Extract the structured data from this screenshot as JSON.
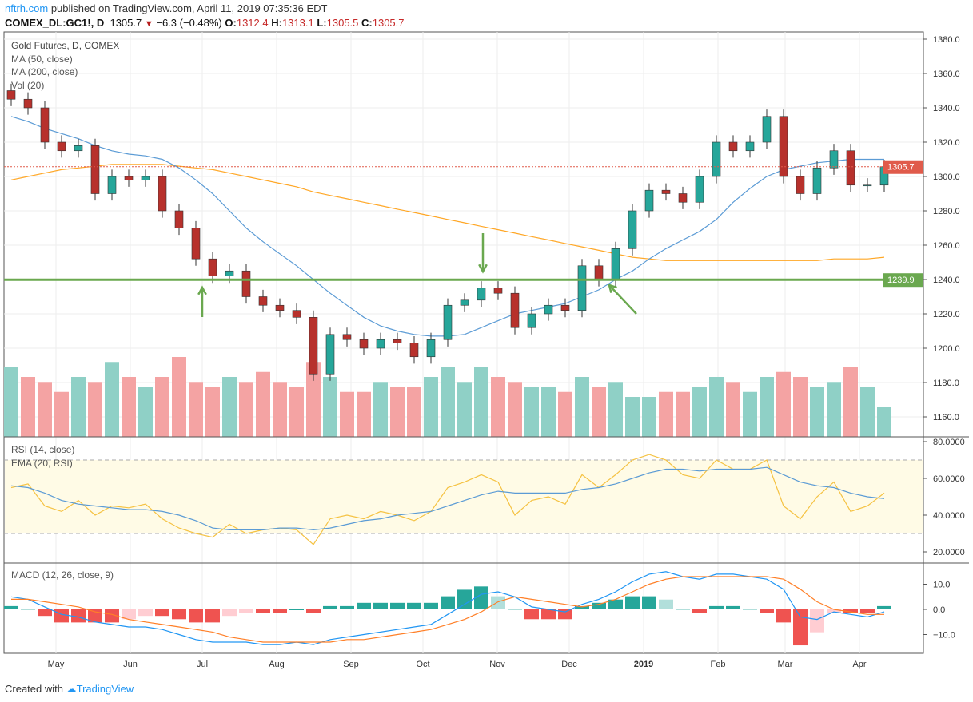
{
  "header": {
    "site": "nftrh.com",
    "published": "published on TradingView.com, April 11, 2019 07:35:36 EDT",
    "symbol": "COMEX_DL:GC1!, D",
    "last": "1305.7",
    "down_arrow": "▼",
    "change": "−6.3 (−0.48%)",
    "o_label": "O:",
    "o": "1312.4",
    "h_label": "H:",
    "h": "1313.1",
    "l_label": "L:",
    "l": "1305.5",
    "c_label": "C:",
    "c": "1305.7"
  },
  "legend": {
    "title": "Gold Futures, D, COMEX",
    "ma50": "MA (50, close)",
    "ma200": "MA (200, close)",
    "vol": "Vol (20)",
    "rsi": "RSI (14, close)",
    "rsi_ema": "EMA (20, RSI)",
    "macd": "MACD (12, 26, close, 9)"
  },
  "footer": {
    "created": "Created with",
    "brand": "TradingView"
  },
  "colors": {
    "up": "#26a69a",
    "down": "#b7312c",
    "ma50": "#5b9bd5",
    "ma200": "#ffa726",
    "support": "#6aa84f",
    "rsi": "#f5c242",
    "rsi_ema": "#5b9bd5",
    "macd": "#2196f3",
    "signal": "#ff7f27",
    "last_price": "#e05b4b"
  },
  "chart_data": [
    {
      "type": "candlestick",
      "title": "Gold Futures, D, COMEX",
      "ylim": [
        1150,
        1385
      ],
      "y_ticks": [
        "1160.0",
        "1180.0",
        "1200.0",
        "1220.0",
        "1240.0",
        "1260.0",
        "1280.0",
        "1300.0",
        "1320.0",
        "1340.0",
        "1360.0",
        "1380.0"
      ],
      "x_ticks": [
        "May",
        "Jun",
        "Jul",
        "Aug",
        "Sep",
        "Oct",
        "Nov",
        "Dec",
        "2019",
        "Feb",
        "Mar",
        "Apr"
      ],
      "x_tick_dates": [
        "2018-05-01",
        "2018-06-01",
        "2018-07-01",
        "2018-08-01",
        "2018-09-01",
        "2018-10-01",
        "2018-11-01",
        "2018-12-01",
        "2019-01-01",
        "2019-02-01",
        "2019-03-01",
        "2019-04-01"
      ],
      "dates": [
        "2018-04-09",
        "2018-04-16",
        "2018-04-23",
        "2018-04-30",
        "2018-05-07",
        "2018-05-14",
        "2018-05-21",
        "2018-05-28",
        "2018-06-04",
        "2018-06-11",
        "2018-06-18",
        "2018-06-25",
        "2018-07-02",
        "2018-07-09",
        "2018-07-16",
        "2018-07-23",
        "2018-07-30",
        "2018-08-06",
        "2018-08-13",
        "2018-08-20",
        "2018-08-27",
        "2018-09-03",
        "2018-09-10",
        "2018-09-17",
        "2018-09-24",
        "2018-10-01",
        "2018-10-08",
        "2018-10-15",
        "2018-10-22",
        "2018-10-29",
        "2018-11-05",
        "2018-11-12",
        "2018-11-19",
        "2018-11-26",
        "2018-12-03",
        "2018-12-10",
        "2018-12-17",
        "2018-12-24",
        "2018-12-31",
        "2019-01-07",
        "2019-01-14",
        "2019-01-21",
        "2019-01-28",
        "2019-02-04",
        "2019-02-11",
        "2019-02-18",
        "2019-02-25",
        "2019-03-04",
        "2019-03-11",
        "2019-03-18",
        "2019-03-25",
        "2019-04-01",
        "2019-04-08"
      ],
      "close": [
        1345,
        1340,
        1320,
        1315,
        1318,
        1290,
        1300,
        1298,
        1300,
        1280,
        1270,
        1252,
        1242,
        1245,
        1230,
        1225,
        1222,
        1218,
        1185,
        1208,
        1205,
        1200,
        1205,
        1203,
        1195,
        1205,
        1225,
        1228,
        1235,
        1232,
        1212,
        1220,
        1225,
        1222,
        1248,
        1240,
        1258,
        1280,
        1292,
        1290,
        1285,
        1300,
        1320,
        1315,
        1320,
        1335,
        1300,
        1290,
        1305,
        1315,
        1295,
        1295,
        1305.7
      ],
      "ma50": [
        1335,
        1332,
        1328,
        1325,
        1322,
        1318,
        1315,
        1313,
        1312,
        1310,
        1305,
        1298,
        1290,
        1280,
        1270,
        1262,
        1255,
        1248,
        1240,
        1232,
        1225,
        1218,
        1213,
        1210,
        1208,
        1207,
        1207,
        1208,
        1212,
        1216,
        1220,
        1222,
        1224,
        1226,
        1230,
        1234,
        1240,
        1245,
        1252,
        1258,
        1263,
        1268,
        1275,
        1285,
        1293,
        1300,
        1304,
        1306,
        1308,
        1309,
        1310,
        1310,
        1310
      ],
      "ma200": [
        1298,
        1300,
        1302,
        1304,
        1305,
        1306,
        1307,
        1307,
        1307,
        1307,
        1306,
        1305,
        1304,
        1302,
        1300,
        1298,
        1296,
        1294,
        1291,
        1289,
        1287,
        1285,
        1283,
        1281,
        1279,
        1277,
        1275,
        1273,
        1271,
        1269,
        1267,
        1265,
        1263,
        1261,
        1259,
        1257,
        1255,
        1253,
        1252,
        1251,
        1251,
        1251,
        1251,
        1251,
        1251,
        1251,
        1251,
        1251,
        1251,
        1252,
        1252,
        1252,
        1253
      ],
      "volume_relative": [
        70,
        60,
        55,
        45,
        60,
        55,
        75,
        60,
        50,
        60,
        80,
        55,
        50,
        60,
        55,
        65,
        55,
        50,
        75,
        60,
        45,
        45,
        55,
        50,
        50,
        60,
        70,
        55,
        70,
        60,
        55,
        50,
        50,
        45,
        60,
        50,
        55,
        40,
        40,
        45,
        45,
        50,
        60,
        55,
        45,
        60,
        65,
        60,
        50,
        55,
        70,
        50,
        30
      ],
      "last_price_label": "1305.7",
      "support_level": 1239.9,
      "support_label": "1239.9",
      "annotations": [
        "arrow-up-jul",
        "arrow-down-oct",
        "arrow-up-left-dec"
      ]
    },
    {
      "type": "line",
      "title": "RSI (14, close)",
      "ylim": [
        15,
        82
      ],
      "band": [
        30,
        70
      ],
      "y_ticks": [
        "20.0000",
        "40.0000",
        "60.0000",
        "80.0000"
      ],
      "series": [
        {
          "name": "RSI (14, close)",
          "values": [
            55,
            57,
            45,
            42,
            48,
            40,
            45,
            44,
            46,
            38,
            33,
            30,
            28,
            35,
            30,
            32,
            33,
            32,
            24,
            38,
            40,
            38,
            42,
            40,
            37,
            42,
            55,
            58,
            62,
            58,
            40,
            48,
            50,
            46,
            62,
            55,
            62,
            70,
            73,
            70,
            62,
            60,
            70,
            65,
            65,
            70,
            45,
            38,
            50,
            58,
            42,
            45,
            52
          ]
        },
        {
          "name": "EMA (20, RSI)",
          "values": [
            56,
            55,
            52,
            48,
            46,
            45,
            44,
            43,
            43,
            42,
            40,
            37,
            33,
            32,
            32,
            32,
            33,
            33,
            32,
            33,
            35,
            37,
            38,
            40,
            41,
            42,
            45,
            48,
            51,
            53,
            52,
            52,
            52,
            52,
            54,
            55,
            57,
            60,
            63,
            65,
            65,
            64,
            65,
            65,
            65,
            66,
            62,
            58,
            56,
            55,
            52,
            50,
            49
          ]
        }
      ]
    },
    {
      "type": "line",
      "title": "MACD (12, 26, close, 9)",
      "ylim": [
        -18,
        18
      ],
      "y_ticks": [
        "10.0",
        "0.0",
        "−10.0"
      ],
      "y_tick_values": [
        10,
        0,
        -10
      ],
      "series": [
        {
          "name": "MACD",
          "values": [
            5,
            4,
            1,
            -2,
            -3,
            -5,
            -6,
            -7,
            -7,
            -8,
            -10,
            -12,
            -13,
            -13,
            -13,
            -14,
            -14,
            -13,
            -14,
            -12,
            -11,
            -10,
            -9,
            -8,
            -7,
            -6,
            -2,
            2,
            6,
            7,
            5,
            1,
            0,
            -1,
            2,
            4,
            7,
            11,
            14,
            15,
            13,
            12,
            14,
            14,
            13,
            12,
            8,
            -3,
            -4,
            -1,
            -2,
            -3,
            -1
          ]
        },
        {
          "name": "Signal",
          "values": [
            4,
            4,
            3,
            2,
            1,
            -1,
            -2,
            -4,
            -5,
            -6,
            -7,
            -8,
            -9,
            -11,
            -12,
            -13,
            -13,
            -13,
            -13,
            -13,
            -12,
            -12,
            -11,
            -10,
            -9,
            -8,
            -6,
            -4,
            -1,
            3,
            5,
            4,
            3,
            2,
            1,
            2,
            4,
            7,
            10,
            12,
            13,
            13,
            13,
            13,
            13,
            13,
            12,
            8,
            3,
            0,
            -1,
            -2,
            -2
          ]
        }
      ]
    }
  ]
}
